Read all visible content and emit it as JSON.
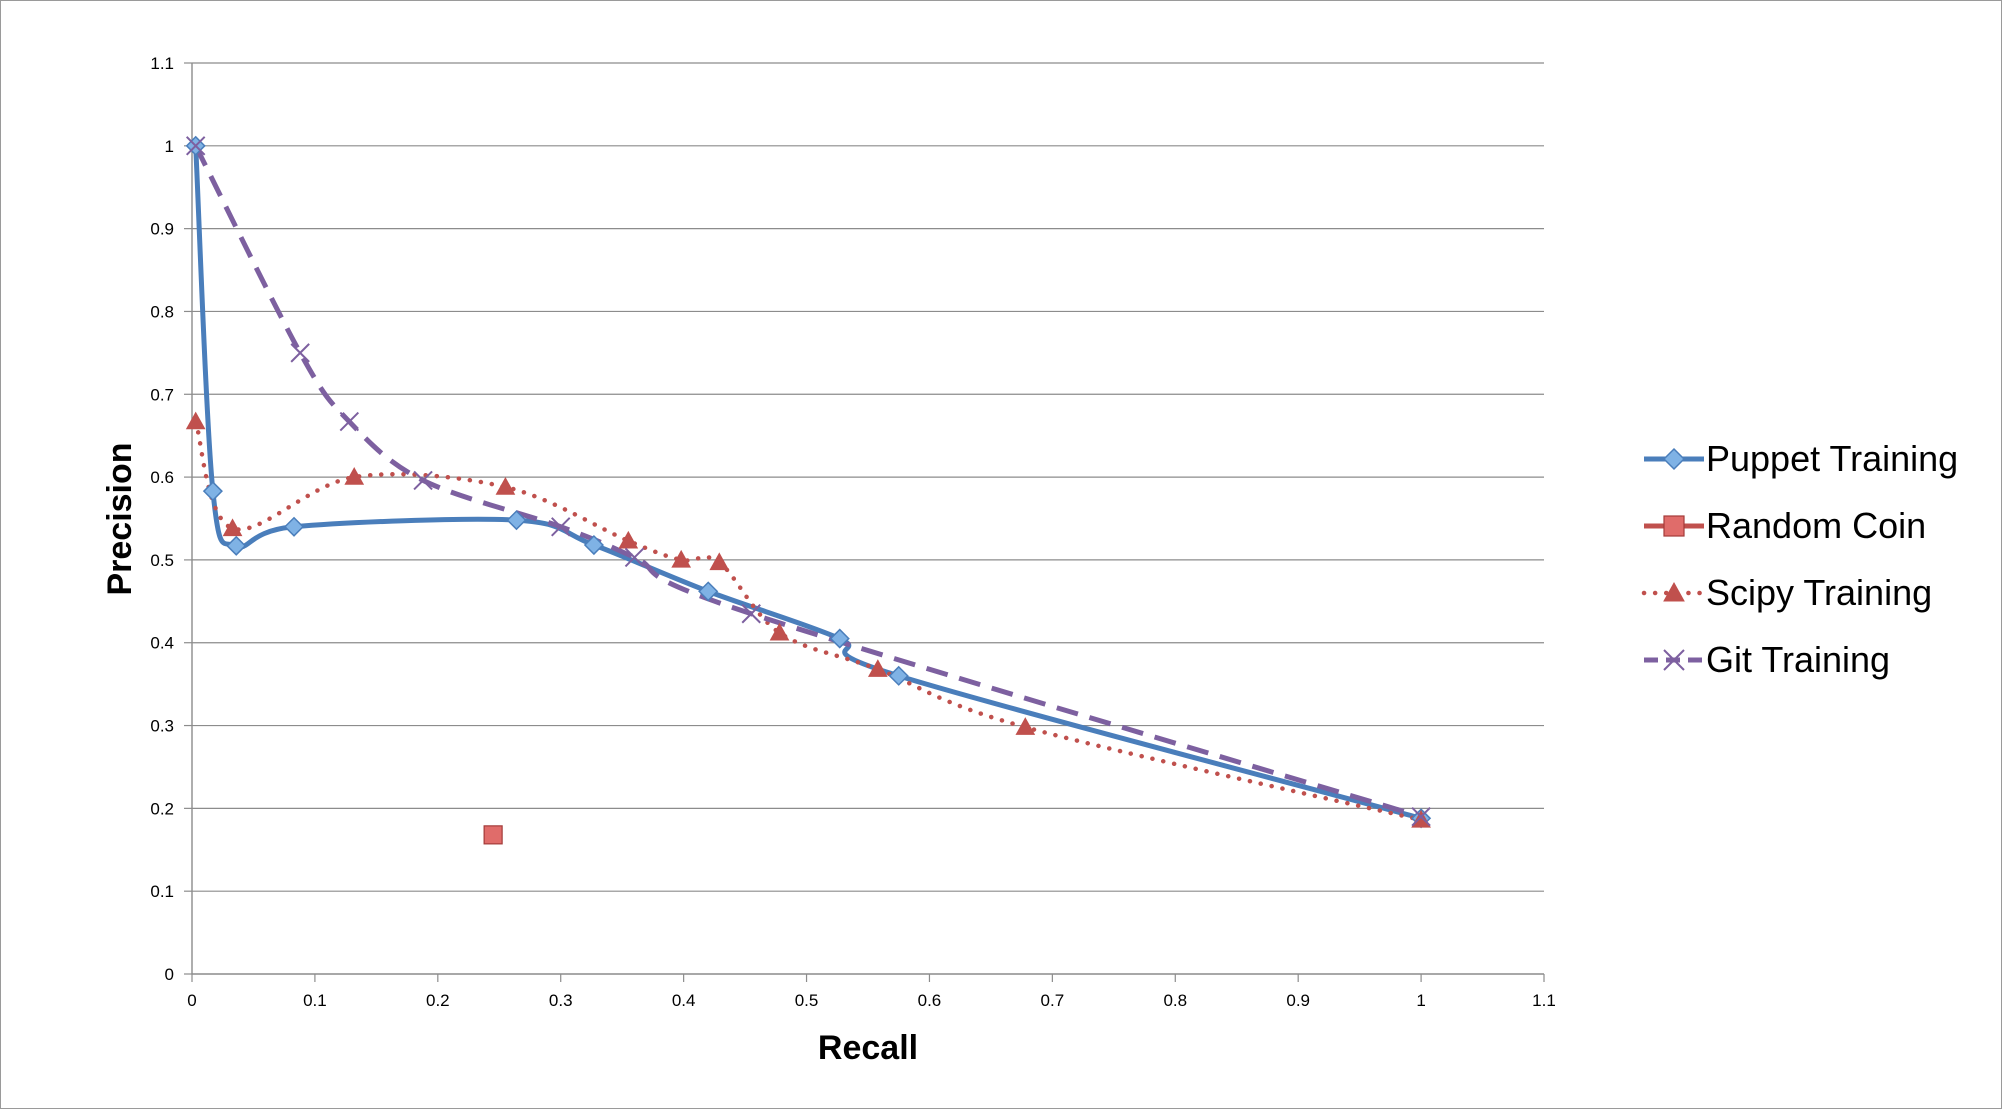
{
  "chart_data": {
    "type": "line",
    "title": "",
    "xlabel": "Recall",
    "ylabel": "Precision",
    "xlim": [
      0,
      1.1
    ],
    "ylim": [
      0,
      1.1
    ],
    "xticks": [
      0,
      0.1,
      0.2,
      0.3,
      0.4,
      0.5,
      0.6,
      0.7,
      0.8,
      0.9,
      1,
      1.1
    ],
    "yticks": [
      0,
      0.1,
      0.2,
      0.3,
      0.4,
      0.5,
      0.6,
      0.7,
      0.8,
      0.9,
      1,
      1.1
    ],
    "xtick_labels": [
      "0",
      "0.1",
      "0.2",
      "0.3",
      "0.4",
      "0.5",
      "0.6",
      "0.7",
      "0.8",
      "0.9",
      "1",
      "1.1"
    ],
    "ytick_labels": [
      "0",
      "0.1",
      "0.2",
      "0.3",
      "0.4",
      "0.5",
      "0.6",
      "0.7",
      "0.8",
      "0.9",
      "1",
      "1.1"
    ],
    "grid": "horizontal",
    "legend_position": "right",
    "series": [
      {
        "name": "Puppet Training",
        "color": "#4a7ebb",
        "marker": "diamond",
        "line_style": "solid",
        "x": [
          0.003,
          0.017,
          0.036,
          0.083,
          0.264,
          0.327,
          0.42,
          0.527,
          0.575,
          1.0
        ],
        "y": [
          1.0,
          0.583,
          0.517,
          0.54,
          0.548,
          0.518,
          0.462,
          0.405,
          0.36,
          0.188
        ]
      },
      {
        "name": "Random Coin",
        "color": "#c0504d",
        "marker": "square",
        "line_style": "none",
        "x": [
          0.245
        ],
        "y": [
          0.168
        ]
      },
      {
        "name": "Scipy Training",
        "color": "#c0504d",
        "marker": "triangle",
        "line_style": "dotted",
        "x": [
          0.003,
          0.033,
          0.132,
          0.255,
          0.355,
          0.398,
          0.429,
          0.478,
          0.558,
          0.678,
          1.0
        ],
        "y": [
          0.667,
          0.538,
          0.6,
          0.588,
          0.523,
          0.5,
          0.497,
          0.412,
          0.368,
          0.298,
          0.186
        ]
      },
      {
        "name": "Git Training",
        "color": "#7d60a0",
        "marker": "x",
        "line_style": "dashed",
        "x": [
          0.003,
          0.088,
          0.128,
          0.188,
          0.3,
          0.36,
          0.455,
          1.0
        ],
        "y": [
          1.0,
          0.75,
          0.667,
          0.596,
          0.54,
          0.503,
          0.435,
          0.19
        ]
      }
    ]
  }
}
